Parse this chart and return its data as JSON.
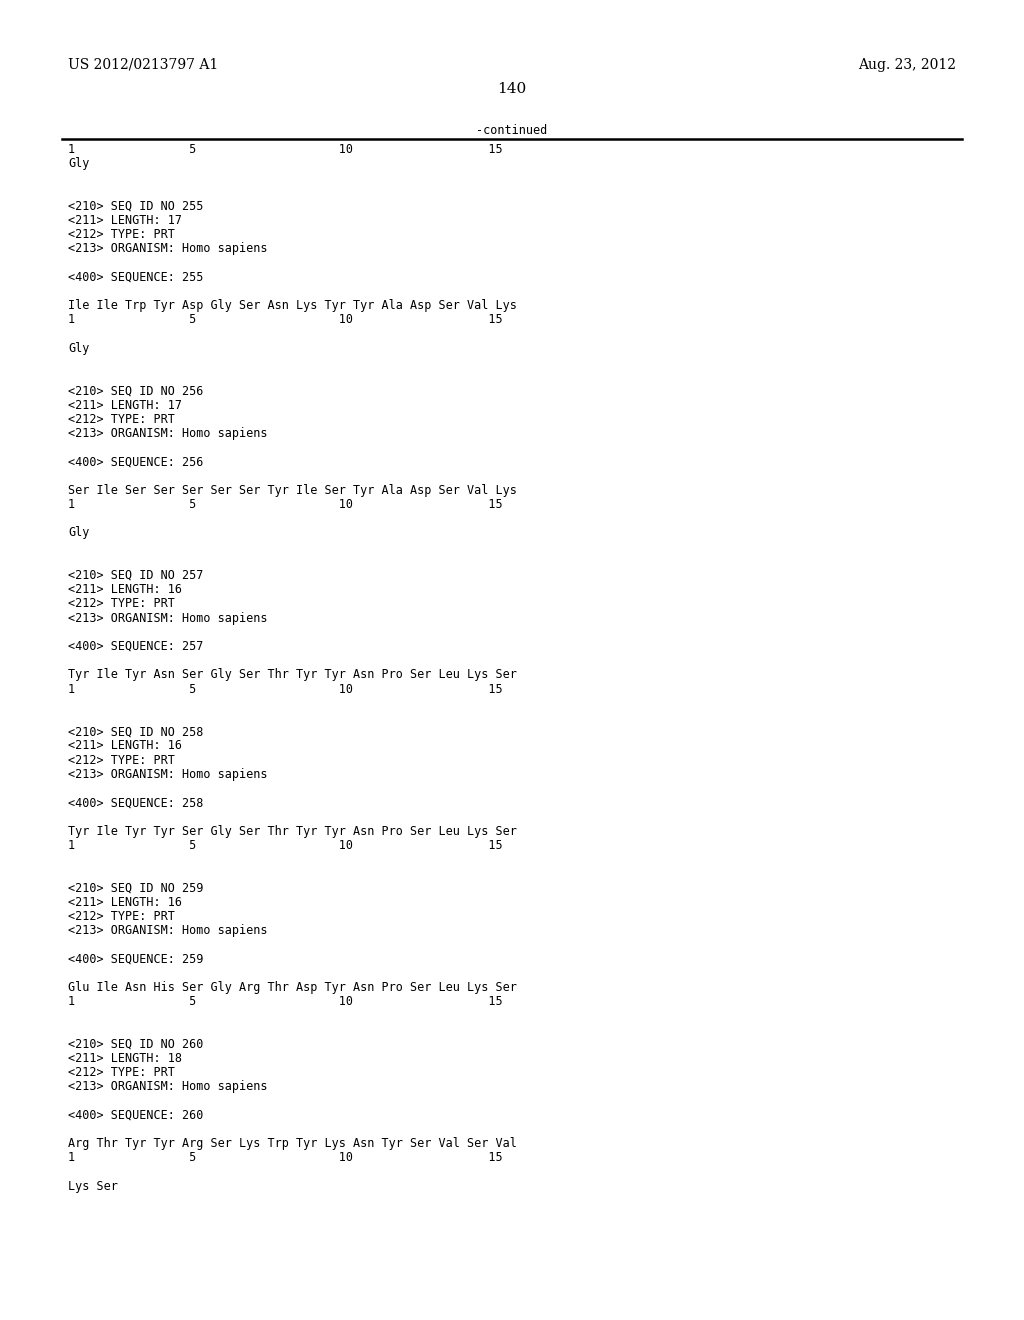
{
  "header_left": "US 2012/0213797 A1",
  "header_right": "Aug. 23, 2012",
  "page_number": "140",
  "continued_label": "-continued",
  "background_color": "#ffffff",
  "text_color": "#000000",
  "mono_font_size": 8.5,
  "content_lines": [
    {
      "type": "ruler",
      "text": "1                5                    10                   15"
    },
    {
      "type": "seq",
      "text": "Gly"
    },
    {
      "type": "gap2"
    },
    {
      "type": "meta",
      "text": "<210> SEQ ID NO 255"
    },
    {
      "type": "meta",
      "text": "<211> LENGTH: 17"
    },
    {
      "type": "meta",
      "text": "<212> TYPE: PRT"
    },
    {
      "type": "meta",
      "text": "<213> ORGANISM: Homo sapiens"
    },
    {
      "type": "gap1"
    },
    {
      "type": "meta",
      "text": "<400> SEQUENCE: 255"
    },
    {
      "type": "gap1"
    },
    {
      "type": "seq",
      "text": "Ile Ile Trp Tyr Asp Gly Ser Asn Lys Tyr Tyr Ala Asp Ser Val Lys"
    },
    {
      "type": "ruler",
      "text": "1                5                    10                   15"
    },
    {
      "type": "gap1"
    },
    {
      "type": "seq",
      "text": "Gly"
    },
    {
      "type": "gap2"
    },
    {
      "type": "meta",
      "text": "<210> SEQ ID NO 256"
    },
    {
      "type": "meta",
      "text": "<211> LENGTH: 17"
    },
    {
      "type": "meta",
      "text": "<212> TYPE: PRT"
    },
    {
      "type": "meta",
      "text": "<213> ORGANISM: Homo sapiens"
    },
    {
      "type": "gap1"
    },
    {
      "type": "meta",
      "text": "<400> SEQUENCE: 256"
    },
    {
      "type": "gap1"
    },
    {
      "type": "seq",
      "text": "Ser Ile Ser Ser Ser Ser Ser Tyr Ile Ser Tyr Ala Asp Ser Val Lys"
    },
    {
      "type": "ruler",
      "text": "1                5                    10                   15"
    },
    {
      "type": "gap1"
    },
    {
      "type": "seq",
      "text": "Gly"
    },
    {
      "type": "gap2"
    },
    {
      "type": "meta",
      "text": "<210> SEQ ID NO 257"
    },
    {
      "type": "meta",
      "text": "<211> LENGTH: 16"
    },
    {
      "type": "meta",
      "text": "<212> TYPE: PRT"
    },
    {
      "type": "meta",
      "text": "<213> ORGANISM: Homo sapiens"
    },
    {
      "type": "gap1"
    },
    {
      "type": "meta",
      "text": "<400> SEQUENCE: 257"
    },
    {
      "type": "gap1"
    },
    {
      "type": "seq",
      "text": "Tyr Ile Tyr Asn Ser Gly Ser Thr Tyr Tyr Asn Pro Ser Leu Lys Ser"
    },
    {
      "type": "ruler",
      "text": "1                5                    10                   15"
    },
    {
      "type": "gap2"
    },
    {
      "type": "meta",
      "text": "<210> SEQ ID NO 258"
    },
    {
      "type": "meta",
      "text": "<211> LENGTH: 16"
    },
    {
      "type": "meta",
      "text": "<212> TYPE: PRT"
    },
    {
      "type": "meta",
      "text": "<213> ORGANISM: Homo sapiens"
    },
    {
      "type": "gap1"
    },
    {
      "type": "meta",
      "text": "<400> SEQUENCE: 258"
    },
    {
      "type": "gap1"
    },
    {
      "type": "seq",
      "text": "Tyr Ile Tyr Tyr Ser Gly Ser Thr Tyr Tyr Asn Pro Ser Leu Lys Ser"
    },
    {
      "type": "ruler",
      "text": "1                5                    10                   15"
    },
    {
      "type": "gap2"
    },
    {
      "type": "meta",
      "text": "<210> SEQ ID NO 259"
    },
    {
      "type": "meta",
      "text": "<211> LENGTH: 16"
    },
    {
      "type": "meta",
      "text": "<212> TYPE: PRT"
    },
    {
      "type": "meta",
      "text": "<213> ORGANISM: Homo sapiens"
    },
    {
      "type": "gap1"
    },
    {
      "type": "meta",
      "text": "<400> SEQUENCE: 259"
    },
    {
      "type": "gap1"
    },
    {
      "type": "seq",
      "text": "Glu Ile Asn His Ser Gly Arg Thr Asp Tyr Asn Pro Ser Leu Lys Ser"
    },
    {
      "type": "ruler",
      "text": "1                5                    10                   15"
    },
    {
      "type": "gap2"
    },
    {
      "type": "meta",
      "text": "<210> SEQ ID NO 260"
    },
    {
      "type": "meta",
      "text": "<211> LENGTH: 18"
    },
    {
      "type": "meta",
      "text": "<212> TYPE: PRT"
    },
    {
      "type": "meta",
      "text": "<213> ORGANISM: Homo sapiens"
    },
    {
      "type": "gap1"
    },
    {
      "type": "meta",
      "text": "<400> SEQUENCE: 260"
    },
    {
      "type": "gap1"
    },
    {
      "type": "seq",
      "text": "Arg Thr Tyr Tyr Arg Ser Lys Trp Tyr Lys Asn Tyr Ser Val Ser Val"
    },
    {
      "type": "ruler",
      "text": "1                5                    10                   15"
    },
    {
      "type": "gap1"
    },
    {
      "type": "seq",
      "text": "Lys Ser"
    }
  ]
}
